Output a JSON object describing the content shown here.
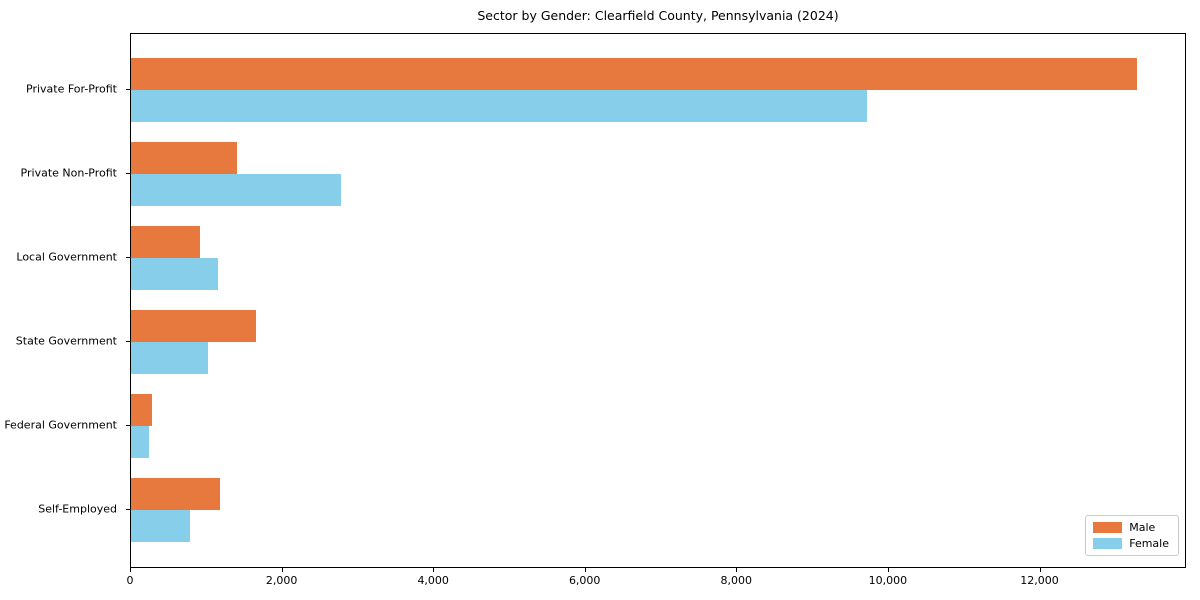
{
  "chart_data": {
    "type": "bar",
    "orientation": "horizontal",
    "title": "Sector by Gender: Clearfield County, Pennsylvania (2024)",
    "categories": [
      "Private For-Profit",
      "Private Non-Profit",
      "Local Government",
      "State Government",
      "Federal Government",
      "Self-Employed"
    ],
    "series": [
      {
        "name": "Male",
        "color": "#E8793E",
        "values": [
          13270,
          1400,
          915,
          1645,
          270,
          1170
        ]
      },
      {
        "name": "Female",
        "color": "#87CEEB",
        "values": [
          9715,
          2770,
          1145,
          1020,
          240,
          780
        ]
      }
    ],
    "xlabel": "",
    "ylabel": "",
    "xlim": [
      0,
      13933
    ],
    "xticks": [
      0,
      2000,
      4000,
      6000,
      8000,
      10000,
      12000
    ],
    "xtick_labels": [
      "0",
      "2,000",
      "4,000",
      "6,000",
      "8,000",
      "10,000",
      "12,000"
    ],
    "grid": false,
    "legend_position": "lower right",
    "legend_labels": [
      "Male",
      "Female"
    ]
  },
  "colors": {
    "male": "#E8793E",
    "female": "#87CEEB",
    "axis": "#000000",
    "legend_border": "#cccccc",
    "background": "#ffffff"
  }
}
